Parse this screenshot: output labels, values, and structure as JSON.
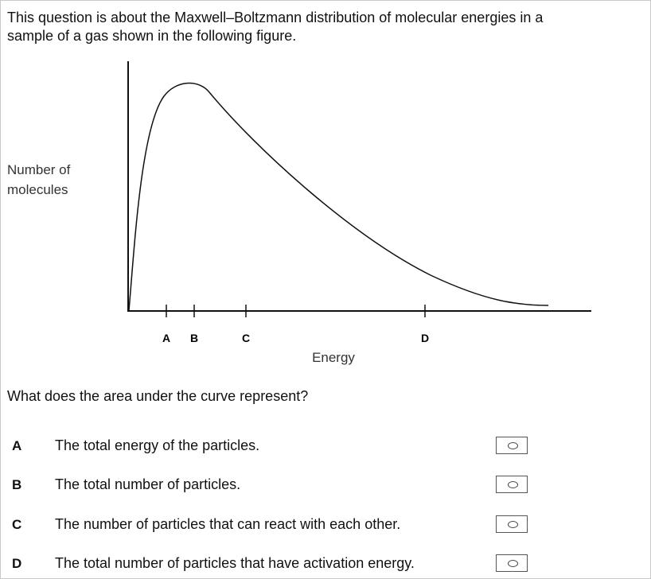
{
  "question": {
    "intro_lines": [
      "This question is about the Maxwell–Boltzmann distribution of molecular energies in a",
      "sample of a gas shown in the following figure."
    ],
    "prompt": "What does the area under the curve represent?"
  },
  "figure": {
    "y_label_lines": [
      "Number of",
      "molecules"
    ],
    "x_label": "Energy",
    "tick_labels": [
      "A",
      "B",
      "C",
      "D"
    ]
  },
  "options": [
    {
      "letter": "A",
      "text": "The total energy of the particles."
    },
    {
      "letter": "B",
      "text": "The total number of particles."
    },
    {
      "letter": "C",
      "text": "The number of particles that can react with each other."
    },
    {
      "letter": "D",
      "text": "The total number of particles that have activation energy."
    }
  ]
}
